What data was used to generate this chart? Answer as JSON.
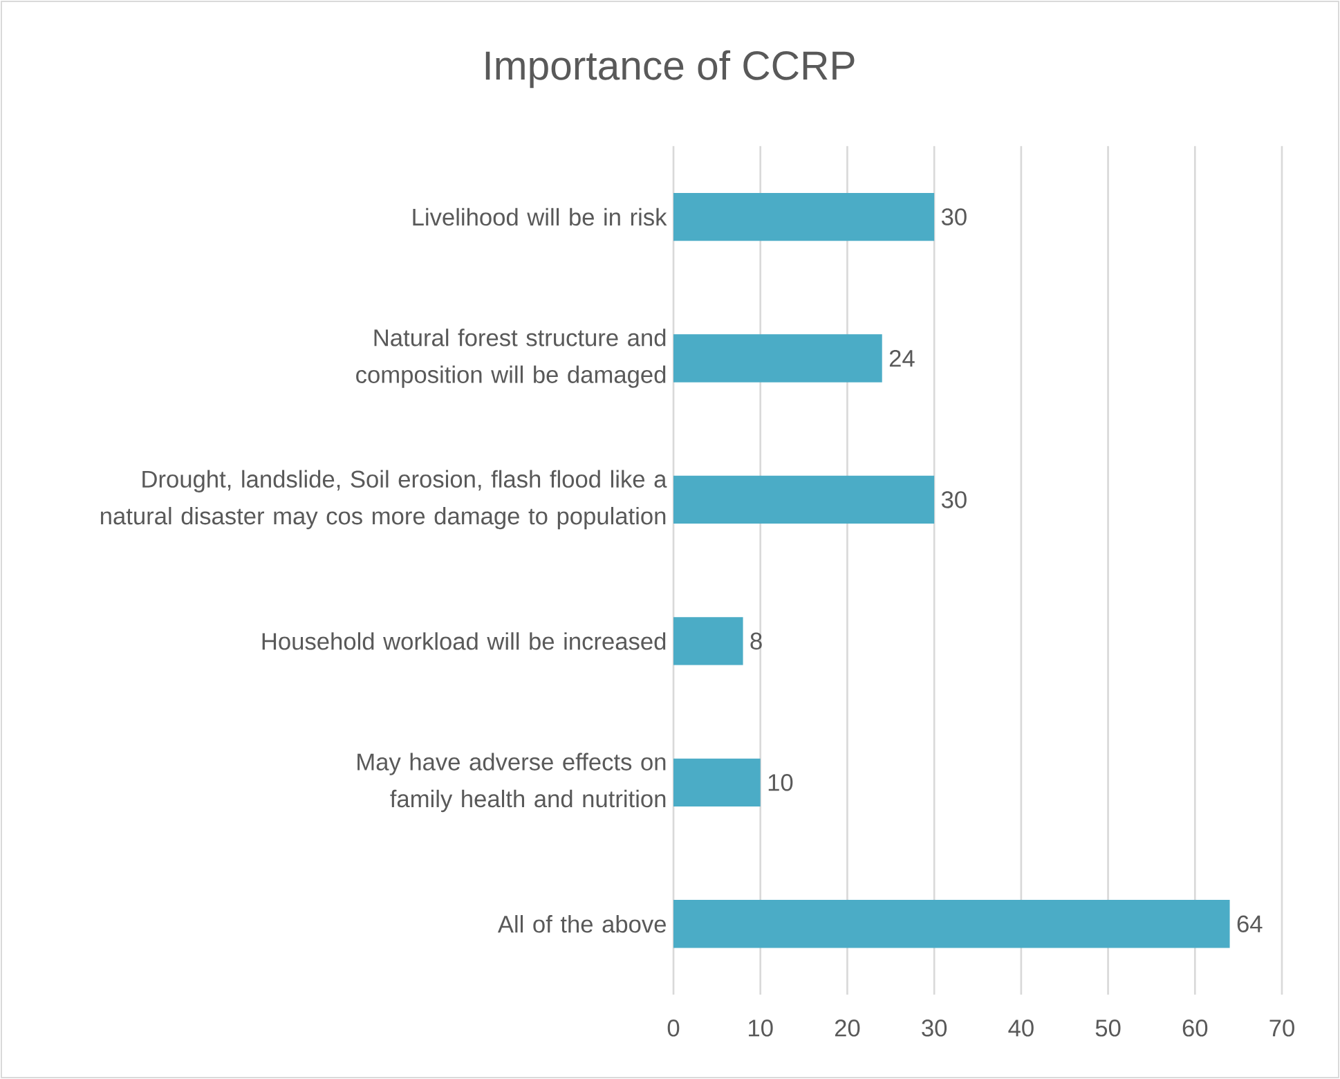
{
  "chart_data": {
    "type": "bar",
    "orientation": "horizontal",
    "title": "Importance of CCRP",
    "categories": [
      "Livelihood will be in risk",
      "Natural forest structure and composition will be damaged",
      "Drought, landslide, Soil erosion, flash flood like a natural disaster may cos more damage to population",
      "Household workload will be increased",
      "May have adverse effects on family health and nutrition",
      "All of the above"
    ],
    "values": [
      30,
      24,
      30,
      8,
      10,
      64
    ],
    "color": "#4bacc6",
    "xlim": [
      0,
      70
    ],
    "xticks": [
      0,
      10,
      20,
      30,
      40,
      50,
      60,
      70
    ],
    "grid": "x",
    "data_labels": true
  }
}
